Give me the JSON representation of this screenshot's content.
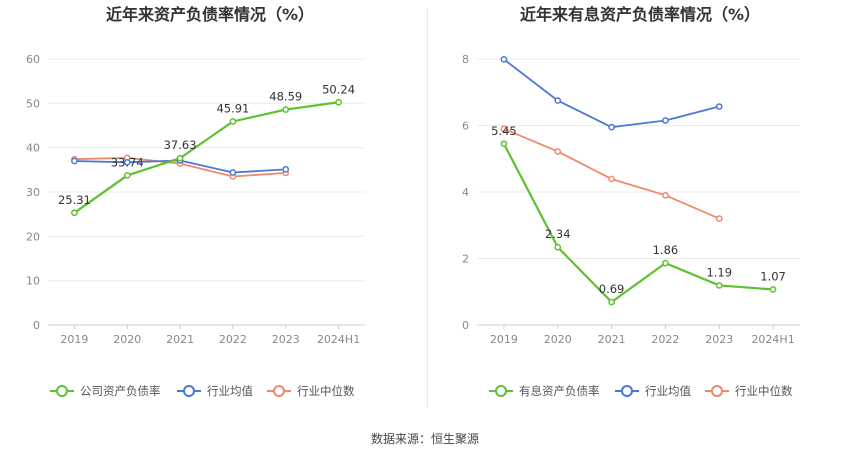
{
  "chart_data": [
    {
      "type": "line",
      "title": "近年来资产负债率情况（%）",
      "categories": [
        "2019",
        "2020",
        "2021",
        "2022",
        "2023",
        "2024H1"
      ],
      "ylim": [
        0,
        60
      ],
      "yticks": [
        0,
        10,
        20,
        30,
        40,
        50,
        60
      ],
      "grid": true,
      "legend_position": "bottom",
      "series": [
        {
          "name": "公司资产负债率",
          "color": "#5cc22e",
          "values": [
            25.31,
            33.74,
            37.63,
            45.91,
            48.59,
            50.24
          ],
          "labels": [
            "25.31",
            "33.74",
            "37.63",
            "45.91",
            "48.59",
            "50.24"
          ]
        },
        {
          "name": "行业均值",
          "color": "#4a78d6",
          "values": [
            37.0,
            36.7,
            37.1,
            34.4,
            35.1,
            null
          ]
        },
        {
          "name": "行业中位数",
          "color": "#f0886a",
          "values": [
            37.4,
            37.7,
            36.4,
            33.5,
            34.3,
            null
          ]
        }
      ]
    },
    {
      "type": "line",
      "title": "近年来有息资产负债率情况（%）",
      "categories": [
        "2019",
        "2020",
        "2021",
        "2022",
        "2023",
        "2024H1"
      ],
      "ylim": [
        0,
        8
      ],
      "yticks": [
        0,
        2,
        4,
        6,
        8
      ],
      "grid": true,
      "legend_position": "bottom",
      "series": [
        {
          "name": "有息资产负债率",
          "color": "#5cc22e",
          "values": [
            5.45,
            2.34,
            0.69,
            1.86,
            1.19,
            1.07
          ],
          "labels": [
            "5.45",
            "2.34",
            "0.69",
            "1.86",
            "1.19",
            "1.07"
          ]
        },
        {
          "name": "行业均值",
          "color": "#4a78d6",
          "values": [
            7.99,
            6.75,
            5.95,
            6.15,
            6.57,
            null
          ]
        },
        {
          "name": "行业中位数",
          "color": "#f0886a",
          "values": [
            5.9,
            5.22,
            4.39,
            3.9,
            3.2,
            null
          ]
        }
      ]
    }
  ],
  "source": "数据来源：恒生聚源"
}
